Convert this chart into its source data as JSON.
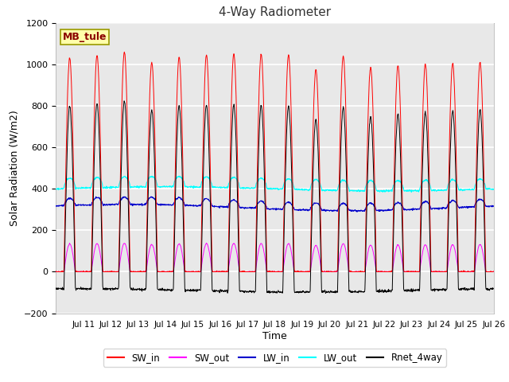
{
  "title": "4-Way Radiometer",
  "xlabel": "Time",
  "ylabel": "Solar Radiation (W/m2)",
  "ylim": [
    -200,
    1200
  ],
  "yticks": [
    -200,
    0,
    200,
    400,
    600,
    800,
    1000,
    1200
  ],
  "start_day": 10,
  "num_days": 16,
  "station_label": "MB_tule",
  "colors": {
    "SW_in": "#ff0000",
    "SW_out": "#ff00ff",
    "LW_in": "#0000cc",
    "LW_out": "#00ffff",
    "Rnet_4way": "#000000"
  },
  "fig_facecolor": "#ffffff",
  "axes_facecolor": "#e8e8e8",
  "grid_color": "#ffffff"
}
